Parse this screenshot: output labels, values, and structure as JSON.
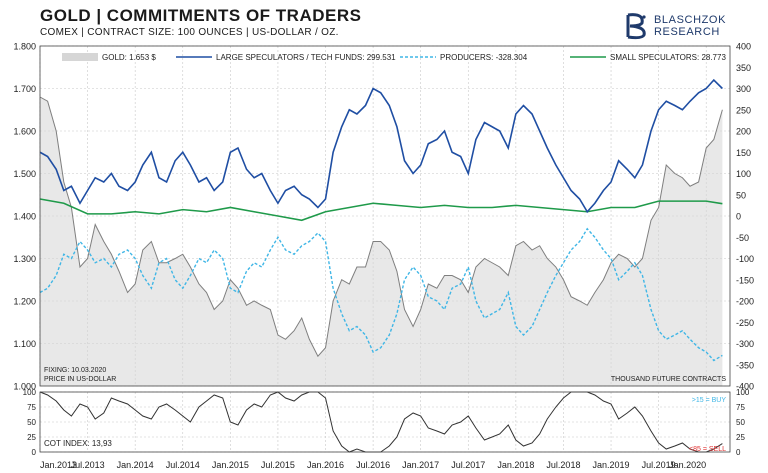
{
  "header": {
    "title": "GOLD | COMMITMENTS OF TRADERS",
    "subtitle": "COMEX | CONTRACT SIZE: 100 OUNCES | US-DOLLAR / OZ.",
    "logo_line1": "BLASCHZOK",
    "logo_line2": "RESEARCH",
    "logo_icon": "snake-b-logo-icon"
  },
  "colors": {
    "gold": "#d6d6d6",
    "gold_line": "#7f7f7f",
    "large_spec": "#1f4ea3",
    "producers": "#3fb6e6",
    "small_spec": "#1f9a4a",
    "cot": "#333333",
    "buy": "#3fb6e6",
    "sell": "#e03030"
  },
  "chart_data": [
    {
      "type": "line",
      "left_axis": {
        "ylim": [
          1000,
          1800
        ],
        "ticks": [
          "1.000",
          "1.100",
          "1.200",
          "1.300",
          "1.400",
          "1.500",
          "1.600",
          "1.700",
          "1.800"
        ]
      },
      "right_axis": {
        "ylim": [
          -400,
          400
        ],
        "ticks": [
          "-400",
          "-350",
          "-300",
          "-250",
          "-200",
          "-150",
          "-100",
          "-50",
          "0",
          "50",
          "100",
          "150",
          "200",
          "250",
          "300",
          "350",
          "400"
        ]
      },
      "x_ticks": [
        "Jan.2013",
        "Jul.2013",
        "Jan.2014",
        "Jul.2014",
        "Jan.2015",
        "Jul.2015",
        "Jan.2016",
        "Jul.2016",
        "Jan.2017",
        "Jul.2017",
        "Jan.2018",
        "Jul.2018",
        "Jan.2019",
        "Jul.2019",
        "Jan.2020"
      ],
      "x_range": [
        2013.0,
        2020.25
      ],
      "legend": [
        {
          "label": "GOLD: 1.653 $",
          "style": "area"
        },
        {
          "label": "LARGE SPECULATORS / TECH FUNDS: 299.531",
          "style": "solid"
        },
        {
          "label": "PRODUCERS: -328.304",
          "style": "dashed"
        },
        {
          "label": "SMALL SPECULATORS: 28.773",
          "style": "solid"
        }
      ],
      "legend_placement": "top",
      "annotations": [
        "FIXING: 10.03.2020",
        "PRICE IN US-DOLLAR",
        "THOUSAND FUTURE CONTRACTS"
      ],
      "series": [
        {
          "name": "GOLD",
          "axis": "left",
          "x": [
            2013.0,
            2013.08,
            2013.17,
            2013.25,
            2013.33,
            2013.42,
            2013.5,
            2013.58,
            2013.67,
            2013.75,
            2013.83,
            2013.92,
            2014.0,
            2014.08,
            2014.17,
            2014.25,
            2014.33,
            2014.42,
            2014.5,
            2014.58,
            2014.67,
            2014.75,
            2014.83,
            2014.92,
            2015.0,
            2015.08,
            2015.17,
            2015.25,
            2015.33,
            2015.42,
            2015.5,
            2015.58,
            2015.67,
            2015.75,
            2015.83,
            2015.92,
            2016.0,
            2016.08,
            2016.17,
            2016.25,
            2016.33,
            2016.42,
            2016.5,
            2016.58,
            2016.67,
            2016.75,
            2016.83,
            2016.92,
            2017.0,
            2017.08,
            2017.17,
            2017.25,
            2017.33,
            2017.42,
            2017.5,
            2017.58,
            2017.67,
            2017.75,
            2017.83,
            2017.92,
            2018.0,
            2018.08,
            2018.17,
            2018.25,
            2018.33,
            2018.42,
            2018.5,
            2018.58,
            2018.67,
            2018.75,
            2018.83,
            2018.92,
            2019.0,
            2019.08,
            2019.17,
            2019.25,
            2019.33,
            2019.42,
            2019.5,
            2019.58,
            2019.67,
            2019.75,
            2019.83,
            2019.92,
            2020.0,
            2020.08,
            2020.17
          ],
          "values": [
            1680,
            1670,
            1600,
            1480,
            1420,
            1280,
            1300,
            1380,
            1340,
            1310,
            1270,
            1220,
            1240,
            1320,
            1340,
            1290,
            1290,
            1300,
            1310,
            1280,
            1240,
            1220,
            1180,
            1200,
            1250,
            1230,
            1190,
            1200,
            1190,
            1180,
            1120,
            1110,
            1130,
            1160,
            1110,
            1070,
            1090,
            1200,
            1250,
            1240,
            1280,
            1280,
            1340,
            1340,
            1320,
            1270,
            1180,
            1140,
            1180,
            1240,
            1230,
            1260,
            1260,
            1250,
            1220,
            1280,
            1300,
            1290,
            1280,
            1260,
            1330,
            1340,
            1320,
            1330,
            1300,
            1280,
            1250,
            1210,
            1200,
            1190,
            1220,
            1250,
            1290,
            1310,
            1300,
            1280,
            1300,
            1390,
            1420,
            1520,
            1500,
            1490,
            1470,
            1480,
            1560,
            1580,
            1650
          ]
        },
        {
          "name": "LARGE SPECULATORS / TECH FUNDS",
          "axis": "right",
          "x": [
            2013.0,
            2013.08,
            2013.17,
            2013.25,
            2013.33,
            2013.42,
            2013.5,
            2013.58,
            2013.67,
            2013.75,
            2013.83,
            2013.92,
            2014.0,
            2014.08,
            2014.17,
            2014.25,
            2014.33,
            2014.42,
            2014.5,
            2014.58,
            2014.67,
            2014.75,
            2014.83,
            2014.92,
            2015.0,
            2015.08,
            2015.17,
            2015.25,
            2015.33,
            2015.42,
            2015.5,
            2015.58,
            2015.67,
            2015.75,
            2015.83,
            2015.92,
            2016.0,
            2016.08,
            2016.17,
            2016.25,
            2016.33,
            2016.42,
            2016.5,
            2016.58,
            2016.67,
            2016.75,
            2016.83,
            2016.92,
            2017.0,
            2017.08,
            2017.17,
            2017.25,
            2017.33,
            2017.42,
            2017.5,
            2017.58,
            2017.67,
            2017.75,
            2017.83,
            2017.92,
            2018.0,
            2018.08,
            2018.17,
            2018.25,
            2018.33,
            2018.42,
            2018.5,
            2018.58,
            2018.67,
            2018.75,
            2018.83,
            2018.92,
            2019.0,
            2019.08,
            2019.17,
            2019.25,
            2019.33,
            2019.42,
            2019.5,
            2019.58,
            2019.67,
            2019.75,
            2019.83,
            2019.92,
            2020.0,
            2020.08,
            2020.17
          ],
          "values": [
            150,
            140,
            110,
            60,
            70,
            30,
            60,
            90,
            80,
            100,
            70,
            60,
            80,
            120,
            150,
            90,
            80,
            130,
            150,
            120,
            80,
            90,
            60,
            80,
            150,
            160,
            110,
            90,
            100,
            60,
            30,
            60,
            70,
            50,
            40,
            20,
            40,
            150,
            210,
            250,
            240,
            260,
            300,
            290,
            260,
            210,
            130,
            100,
            120,
            170,
            180,
            200,
            150,
            140,
            100,
            180,
            220,
            210,
            200,
            160,
            240,
            260,
            240,
            200,
            160,
            120,
            90,
            60,
            40,
            10,
            30,
            60,
            80,
            130,
            110,
            90,
            120,
            200,
            250,
            270,
            260,
            250,
            270,
            290,
            300,
            320,
            300
          ]
        },
        {
          "name": "PRODUCERS",
          "axis": "right",
          "x": [
            2013.0,
            2013.08,
            2013.17,
            2013.25,
            2013.33,
            2013.42,
            2013.5,
            2013.58,
            2013.67,
            2013.75,
            2013.83,
            2013.92,
            2014.0,
            2014.08,
            2014.17,
            2014.25,
            2014.33,
            2014.42,
            2014.5,
            2014.58,
            2014.67,
            2014.75,
            2014.83,
            2014.92,
            2015.0,
            2015.08,
            2015.17,
            2015.25,
            2015.33,
            2015.42,
            2015.5,
            2015.58,
            2015.67,
            2015.75,
            2015.83,
            2015.92,
            2016.0,
            2016.08,
            2016.17,
            2016.25,
            2016.33,
            2016.42,
            2016.5,
            2016.58,
            2016.67,
            2016.75,
            2016.83,
            2016.92,
            2017.0,
            2017.08,
            2017.17,
            2017.25,
            2017.33,
            2017.42,
            2017.5,
            2017.58,
            2017.67,
            2017.75,
            2017.83,
            2017.92,
            2018.0,
            2018.08,
            2018.17,
            2018.25,
            2018.33,
            2018.42,
            2018.5,
            2018.58,
            2018.67,
            2018.75,
            2018.83,
            2018.92,
            2019.0,
            2019.08,
            2019.17,
            2019.25,
            2019.33,
            2019.42,
            2019.5,
            2019.58,
            2019.67,
            2019.75,
            2019.83,
            2019.92,
            2020.0,
            2020.08,
            2020.17
          ],
          "values": [
            -180,
            -170,
            -140,
            -90,
            -100,
            -60,
            -80,
            -110,
            -100,
            -120,
            -90,
            -80,
            -100,
            -140,
            -170,
            -110,
            -100,
            -150,
            -170,
            -140,
            -100,
            -110,
            -80,
            -100,
            -170,
            -180,
            -130,
            -110,
            -120,
            -80,
            -50,
            -80,
            -90,
            -70,
            -60,
            -40,
            -60,
            -170,
            -230,
            -270,
            -260,
            -280,
            -320,
            -310,
            -280,
            -230,
            -150,
            -120,
            -140,
            -190,
            -200,
            -220,
            -170,
            -160,
            -120,
            -200,
            -240,
            -230,
            -220,
            -180,
            -260,
            -280,
            -260,
            -220,
            -180,
            -140,
            -110,
            -80,
            -60,
            -30,
            -50,
            -80,
            -100,
            -150,
            -130,
            -110,
            -140,
            -220,
            -270,
            -290,
            -280,
            -270,
            -290,
            -310,
            -320,
            -340,
            -328
          ]
        },
        {
          "name": "SMALL SPECULATORS",
          "axis": "right",
          "x": [
            2013.0,
            2013.25,
            2013.5,
            2013.75,
            2014.0,
            2014.25,
            2014.5,
            2014.75,
            2015.0,
            2015.25,
            2015.5,
            2015.75,
            2016.0,
            2016.25,
            2016.5,
            2016.75,
            2017.0,
            2017.25,
            2017.5,
            2017.75,
            2018.0,
            2018.25,
            2018.5,
            2018.75,
            2019.0,
            2019.25,
            2019.5,
            2019.75,
            2020.0,
            2020.17
          ],
          "values": [
            40,
            30,
            5,
            5,
            10,
            5,
            15,
            10,
            20,
            10,
            0,
            -10,
            10,
            20,
            30,
            25,
            20,
            25,
            20,
            20,
            25,
            20,
            15,
            10,
            20,
            20,
            35,
            35,
            35,
            29
          ]
        }
      ]
    },
    {
      "type": "line",
      "name": "COT INDEX",
      "ylim": [
        0,
        100
      ],
      "ticks": [
        "0",
        "25",
        "50",
        "75",
        "100"
      ],
      "annotations": [
        "COT INDEX: 13,93",
        ">15 = BUY",
        "<85 = SELL"
      ],
      "x": [
        2013.0,
        2013.08,
        2013.17,
        2013.25,
        2013.33,
        2013.42,
        2013.5,
        2013.58,
        2013.67,
        2013.75,
        2013.83,
        2013.92,
        2014.0,
        2014.08,
        2014.17,
        2014.25,
        2014.33,
        2014.42,
        2014.5,
        2014.58,
        2014.67,
        2014.75,
        2014.83,
        2014.92,
        2015.0,
        2015.08,
        2015.17,
        2015.25,
        2015.33,
        2015.42,
        2015.5,
        2015.58,
        2015.67,
        2015.75,
        2015.83,
        2015.92,
        2016.0,
        2016.08,
        2016.17,
        2016.25,
        2016.33,
        2016.42,
        2016.5,
        2016.58,
        2016.67,
        2016.75,
        2016.83,
        2016.92,
        2017.0,
        2017.08,
        2017.17,
        2017.25,
        2017.33,
        2017.42,
        2017.5,
        2017.58,
        2017.67,
        2017.75,
        2017.83,
        2017.92,
        2018.0,
        2018.08,
        2018.17,
        2018.25,
        2018.33,
        2018.42,
        2018.5,
        2018.58,
        2018.67,
        2018.75,
        2018.83,
        2018.92,
        2019.0,
        2019.08,
        2019.17,
        2019.25,
        2019.33,
        2019.42,
        2019.5,
        2019.58,
        2019.67,
        2019.75,
        2019.83,
        2019.92,
        2020.0,
        2020.08,
        2020.17
      ],
      "values": [
        100,
        95,
        85,
        70,
        60,
        80,
        75,
        55,
        65,
        90,
        85,
        80,
        70,
        60,
        55,
        75,
        80,
        70,
        60,
        50,
        75,
        85,
        95,
        90,
        50,
        45,
        70,
        80,
        75,
        95,
        100,
        90,
        85,
        95,
        100,
        100,
        90,
        35,
        10,
        0,
        5,
        0,
        0,
        0,
        10,
        25,
        55,
        65,
        60,
        40,
        35,
        30,
        45,
        50,
        60,
        40,
        20,
        25,
        30,
        45,
        20,
        10,
        15,
        30,
        55,
        75,
        90,
        100,
        100,
        100,
        95,
        85,
        80,
        55,
        65,
        75,
        60,
        35,
        15,
        5,
        10,
        15,
        5,
        0,
        0,
        5,
        14
      ]
    }
  ]
}
